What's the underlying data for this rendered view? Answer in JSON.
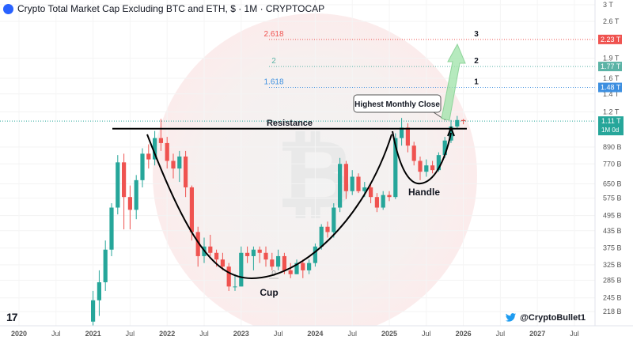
{
  "header": {
    "symbol_title": "Crypto Total Market Cap Excluding BTC and ETH, $ · 1M · CRYPTOCAP"
  },
  "footer": {
    "tv_logo": "17",
    "credit": "@CryptoBullet1"
  },
  "colors": {
    "up": "#26a69a",
    "down": "#ef5350",
    "fib_2618": "#ef5350",
    "fib_2": "#5bb3a6",
    "fib_1618": "#3d8fe0",
    "arrow": "#9ee3a8"
  },
  "chart_data": {
    "type": "candlestick",
    "title": "Crypto Total Market Cap Excluding BTC and ETH, $ · 1M · CRYPTOCAP",
    "y_scale": "log",
    "ylim": [
      0.19,
      3.0
    ],
    "y_ticks": [
      {
        "value": 3.0,
        "label": "3 T"
      },
      {
        "value": 2.6,
        "label": "2.6 T"
      },
      {
        "value": 1.9,
        "label": "1.9 T"
      },
      {
        "value": 1.6,
        "label": "1.6 T"
      },
      {
        "value": 1.4,
        "label": "1.4 T"
      },
      {
        "value": 1.2,
        "label": "1.2 T"
      },
      {
        "value": 0.89,
        "label": "890 B"
      },
      {
        "value": 0.77,
        "label": "770 B"
      },
      {
        "value": 0.65,
        "label": "650 B"
      },
      {
        "value": 0.575,
        "label": "575 B"
      },
      {
        "value": 0.495,
        "label": "495 B"
      },
      {
        "value": 0.435,
        "label": "435 B"
      },
      {
        "value": 0.375,
        "label": "375 B"
      },
      {
        "value": 0.325,
        "label": "325 B"
      },
      {
        "value": 0.285,
        "label": "285 B"
      },
      {
        "value": 0.245,
        "label": "245 B"
      },
      {
        "value": 0.218,
        "label": "218 B"
      }
    ],
    "x_ticks": [
      {
        "label": "2020",
        "month": 0
      },
      {
        "label": "Jul",
        "month": 6
      },
      {
        "label": "2021",
        "month": 12
      },
      {
        "label": "Jul",
        "month": 18
      },
      {
        "label": "2022",
        "month": 24
      },
      {
        "label": "Jul",
        "month": 30
      },
      {
        "label": "2023",
        "month": 36
      },
      {
        "label": "Jul",
        "month": 42
      },
      {
        "label": "2024",
        "month": 48
      },
      {
        "label": "Jul",
        "month": 54
      },
      {
        "label": "2025",
        "month": 60
      },
      {
        "label": "Jul",
        "month": 66
      },
      {
        "label": "2026",
        "month": 72
      },
      {
        "label": "Jul",
        "month": 78
      },
      {
        "label": "2027",
        "month": 84
      },
      {
        "label": "Jul",
        "month": 90
      }
    ],
    "candles_start_month": 12,
    "candles": [
      [
        0.2,
        0.26,
        0.18,
        0.24
      ],
      [
        0.24,
        0.31,
        0.21,
        0.28
      ],
      [
        0.28,
        0.4,
        0.26,
        0.37
      ],
      [
        0.37,
        0.55,
        0.35,
        0.53
      ],
      [
        0.53,
        0.83,
        0.5,
        0.78
      ],
      [
        0.78,
        0.84,
        0.44,
        0.58
      ],
      [
        0.58,
        0.64,
        0.44,
        0.52
      ],
      [
        0.52,
        0.7,
        0.48,
        0.67
      ],
      [
        0.67,
        0.88,
        0.63,
        0.84
      ],
      [
        0.84,
        0.91,
        0.74,
        0.8
      ],
      [
        0.8,
        1.02,
        0.76,
        0.96
      ],
      [
        0.96,
        1.13,
        0.86,
        0.92
      ],
      [
        0.92,
        0.97,
        0.74,
        0.79
      ],
      [
        0.79,
        0.84,
        0.68,
        0.74
      ],
      [
        0.74,
        0.86,
        0.66,
        0.82
      ],
      [
        0.82,
        0.86,
        0.58,
        0.63
      ],
      [
        0.63,
        0.64,
        0.4,
        0.43
      ],
      [
        0.43,
        0.45,
        0.32,
        0.35
      ],
      [
        0.35,
        0.41,
        0.33,
        0.38
      ],
      [
        0.38,
        0.42,
        0.35,
        0.36
      ],
      [
        0.36,
        0.37,
        0.32,
        0.34
      ],
      [
        0.34,
        0.36,
        0.31,
        0.32
      ],
      [
        0.32,
        0.33,
        0.26,
        0.27
      ],
      [
        0.27,
        0.3,
        0.26,
        0.27
      ],
      [
        0.27,
        0.38,
        0.27,
        0.36
      ],
      [
        0.36,
        0.38,
        0.33,
        0.35
      ],
      [
        0.35,
        0.38,
        0.31,
        0.37
      ],
      [
        0.37,
        0.38,
        0.33,
        0.36
      ],
      [
        0.36,
        0.38,
        0.32,
        0.34
      ],
      [
        0.34,
        0.36,
        0.31,
        0.32
      ],
      [
        0.32,
        0.37,
        0.31,
        0.35
      ],
      [
        0.35,
        0.36,
        0.3,
        0.31
      ],
      [
        0.31,
        0.33,
        0.29,
        0.3
      ],
      [
        0.3,
        0.34,
        0.3,
        0.33
      ],
      [
        0.33,
        0.34,
        0.29,
        0.31
      ],
      [
        0.31,
        0.34,
        0.3,
        0.33
      ],
      [
        0.33,
        0.39,
        0.32,
        0.38
      ],
      [
        0.38,
        0.46,
        0.37,
        0.45
      ],
      [
        0.45,
        0.47,
        0.41,
        0.43
      ],
      [
        0.43,
        0.55,
        0.41,
        0.53
      ],
      [
        0.53,
        0.81,
        0.51,
        0.77
      ],
      [
        0.77,
        0.79,
        0.57,
        0.61
      ],
      [
        0.61,
        0.73,
        0.59,
        0.69
      ],
      [
        0.69,
        0.71,
        0.6,
        0.61
      ],
      [
        0.61,
        0.66,
        0.58,
        0.63
      ],
      [
        0.63,
        0.65,
        0.55,
        0.58
      ],
      [
        0.58,
        0.6,
        0.51,
        0.53
      ],
      [
        0.53,
        0.61,
        0.52,
        0.59
      ],
      [
        0.59,
        0.61,
        0.56,
        0.58
      ],
      [
        0.58,
        1.0,
        0.57,
        0.96
      ],
      [
        0.96,
        1.14,
        0.9,
        1.05
      ],
      [
        1.05,
        1.09,
        0.85,
        0.9
      ],
      [
        0.9,
        0.93,
        0.76,
        0.79
      ],
      [
        0.79,
        0.82,
        0.67,
        0.72
      ],
      [
        0.72,
        0.8,
        0.69,
        0.76
      ],
      [
        0.76,
        0.79,
        0.71,
        0.73
      ],
      [
        0.73,
        0.85,
        0.72,
        0.83
      ],
      [
        0.83,
        0.97,
        0.81,
        0.94
      ],
      [
        0.94,
        1.12,
        0.92,
        1.06
      ],
      [
        1.06,
        1.16,
        1.04,
        1.12
      ],
      [
        1.12,
        1.13,
        1.08,
        1.11
      ]
    ],
    "fib_levels": [
      {
        "ratio_label": "2.618",
        "marker": "3",
        "value": 2.23,
        "price_label": "2.23 T"
      },
      {
        "ratio_label": "2",
        "marker": "2",
        "value": 1.77,
        "price_label": "1.77 T"
      },
      {
        "ratio_label": "1.618",
        "marker": "1",
        "value": 1.48,
        "price_label": "1.48 T"
      }
    ],
    "fib_zero_label": "0",
    "resistance": {
      "label": "Resistance",
      "value": 1.04
    },
    "annotations": {
      "cup": "Cup",
      "handle": "Handle",
      "callout": "Highest Monthly Close"
    },
    "current_price": {
      "label": "1.11 T",
      "sublabel": "1M 0d",
      "value": 1.11
    }
  }
}
